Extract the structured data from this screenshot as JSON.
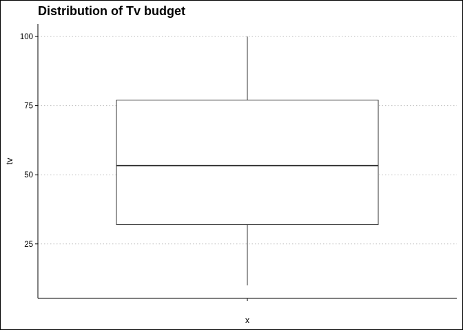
{
  "chart_data": {
    "type": "box",
    "title": "Distribution of Tv budget",
    "xlabel": "x",
    "ylabel": "tv",
    "x_tick_labels": [
      ""
    ],
    "y_ticks": [
      25,
      50,
      75,
      100
    ],
    "y_tick_labels": [
      "25",
      "50",
      "75",
      "100"
    ],
    "ylim": [
      5.3,
      104.5
    ],
    "grid": {
      "horizontal": true,
      "vertical": false,
      "style": "dotted"
    },
    "boxes": [
      {
        "min": 10,
        "q1": 32,
        "median": 53.3,
        "q3": 77,
        "max": 100
      }
    ]
  },
  "colors": {
    "box_stroke": "#333333",
    "grid": "#bdbdbd",
    "axis": "#000000",
    "background": "#ffffff"
  }
}
